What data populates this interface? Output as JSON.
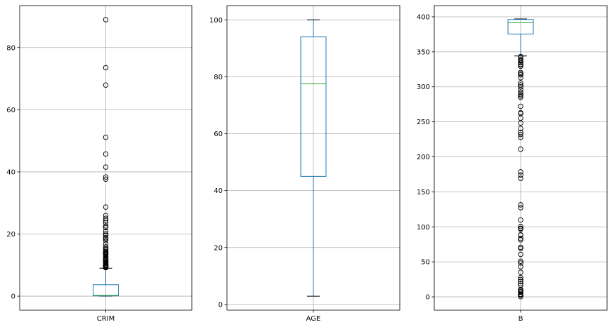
{
  "chart_data": [
    {
      "type": "box",
      "category": "CRIM",
      "ylim": [
        -4.5,
        93.5
      ],
      "yticks": [
        0,
        20,
        40,
        60,
        80
      ],
      "grid": true,
      "box": {
        "whisker_low": 0.006,
        "q1": 0.08,
        "median": 0.26,
        "q3": 3.68,
        "whisker_high": 8.98
      },
      "outliers": [
        88.98,
        73.53,
        67.92,
        51.14,
        45.75,
        41.53,
        38.35,
        37.66,
        28.66,
        25.94,
        25.05,
        24.39,
        23.65,
        22.6,
        22.05,
        20.85,
        20.08,
        19.61,
        18.81,
        18.5,
        17.87,
        16.81,
        15.86,
        15.29,
        15.02,
        14.44,
        14.33,
        14.05,
        13.91,
        13.68,
        13.52,
        13.36,
        12.8,
        12.25,
        12.05,
        11.95,
        11.81,
        11.58,
        11.16,
        11.11,
        11.09,
        10.84,
        10.67,
        10.23,
        10.06,
        9.97,
        9.92,
        9.82,
        9.72,
        9.52,
        9.34,
        9.19,
        9.18
      ]
    },
    {
      "type": "box",
      "category": "AGE",
      "ylim": [
        -2.0,
        105.0
      ],
      "yticks": [
        0,
        20,
        40,
        60,
        80,
        100
      ],
      "grid": true,
      "box": {
        "whisker_low": 2.9,
        "q1": 45.0,
        "median": 77.5,
        "q3": 94.0,
        "whisker_high": 100.0
      },
      "outliers": []
    },
    {
      "type": "box",
      "category": "B",
      "ylim": [
        -19.0,
        416.0
      ],
      "yticks": [
        0,
        50,
        100,
        150,
        200,
        250,
        300,
        350,
        400
      ],
      "grid": true,
      "box": {
        "whisker_low": 344.05,
        "q1": 375.38,
        "median": 391.44,
        "q3": 396.23,
        "whisker_high": 396.9
      },
      "outliers": [
        343.28,
        341.6,
        338.92,
        338.63,
        336.92,
        334.4,
        332.09,
        331.29,
        329.46,
        320.46,
        318.75,
        317.0,
        313.0,
        305.67,
        302.76,
        300.0,
        296.0,
        292.29,
        289.0,
        287.0,
        285.0,
        272.21,
        263.0,
        261.95,
        255.23,
        248.31,
        240.52,
        235.0,
        232.0,
        228.0,
        210.97,
        178.6,
        174.0,
        169.27,
        131.42,
        127.36,
        109.85,
        100.6,
        97.95,
        96.73,
        88.63,
        88.27,
        83.45,
        81.33,
        70.8,
        68.95,
        60.72,
        50.92,
        48.45,
        43.06,
        35.05,
        27.49,
        24.65,
        22.01,
        18.82,
        16.45,
        10.48,
        9.32,
        7.68,
        6.68,
        3.65,
        3.5,
        2.6,
        2.52,
        0.32
      ]
    }
  ]
}
